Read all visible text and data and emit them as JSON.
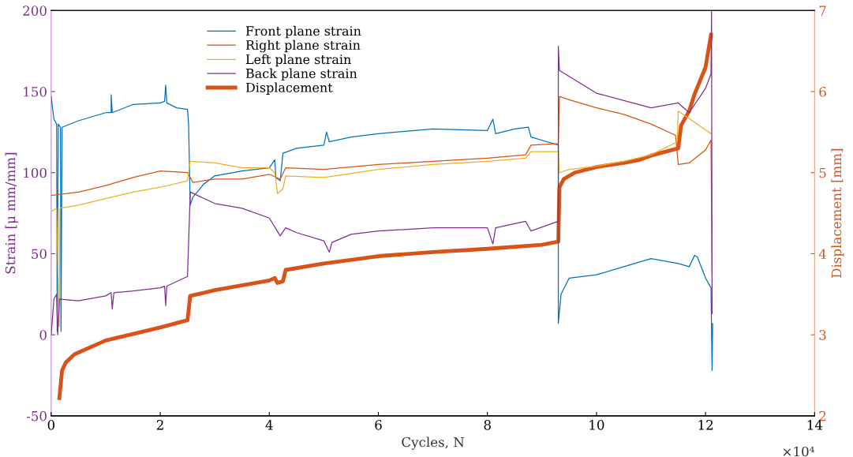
{
  "chart_data": {
    "type": "line",
    "xlabel": "Cycles, N",
    "ylabel": "Strain [μ mm/mm]",
    "y2label": "Displacement [mm]",
    "annotations": [
      "×10⁴"
    ],
    "xlim": [
      0,
      14
    ],
    "xticks": [
      0,
      2,
      4,
      6,
      8,
      10,
      12,
      14
    ],
    "ylim": [
      -50,
      200
    ],
    "yticks": [
      -50,
      0,
      50,
      100,
      150,
      200
    ],
    "y2lim": [
      2,
      7
    ],
    "y2ticks": [
      2,
      3,
      4,
      5,
      6,
      7
    ],
    "grid": false,
    "legend": "top left",
    "marker": "none",
    "line_style": "solid",
    "series": [
      {
        "name": "Front plane strain",
        "color": "#0072bd",
        "x": [
          0,
          0.05,
          0.1,
          0.11,
          0.13,
          0.17,
          0.18,
          0.2,
          0.5,
          1.0,
          1.1,
          1.1,
          1.12,
          1.5,
          2.0,
          2.08,
          2.1,
          2.12,
          2.3,
          2.5,
          2.52,
          2.55,
          2.6,
          2.8,
          3.0,
          3.5,
          4.0,
          4.1,
          4.12,
          4.2,
          4.25,
          4.5,
          5.0,
          5.05,
          5.1,
          5.5,
          6.0,
          7.0,
          8.0,
          8.1,
          8.15,
          8.5,
          8.75,
          8.8,
          9.2,
          9.3,
          9.3,
          9.35,
          9.5,
          10,
          10.5,
          11,
          11.5,
          11.7,
          11.8,
          11.85,
          12.0,
          12.1,
          12.12,
          12.13
        ],
        "values": [
          147,
          133,
          130,
          2,
          130,
          128,
          2,
          128,
          132,
          137,
          137,
          148,
          137,
          142,
          143,
          144,
          154,
          143,
          140,
          139,
          130,
          80,
          85,
          93,
          98,
          101,
          103,
          108,
          97,
          95,
          112,
          115,
          117,
          125,
          119,
          122,
          124,
          127,
          126,
          133,
          124,
          127,
          128,
          122,
          118,
          117,
          7,
          25,
          35,
          37,
          42,
          47,
          44,
          42,
          49,
          48,
          35,
          29,
          -22,
          7
        ]
      },
      {
        "name": "Right plane strain",
        "color": "#d95319",
        "x": [
          0,
          0.5,
          1,
          1.5,
          2,
          2.5,
          2.6,
          3,
          3.5,
          4,
          4.2,
          4.3,
          5,
          6,
          7,
          8,
          8.7,
          8.8,
          9.3,
          9.32,
          9.5,
          10,
          10.5,
          11,
          11.45,
          11.5,
          11.7,
          12,
          12.1,
          12.12
        ],
        "values": [
          86,
          88,
          92,
          97,
          101,
          100,
          94,
          96,
          96,
          99,
          96,
          103,
          102,
          105,
          107,
          109,
          111,
          117,
          118,
          147,
          145,
          140,
          136,
          130,
          123,
          105,
          106,
          114,
          120,
          38
        ]
      },
      {
        "name": "Left plane strain",
        "color": "#edb120",
        "x": [
          0,
          0.1,
          0.145,
          0.16,
          0.5,
          1,
          1.5,
          2,
          2.5,
          2.55,
          3,
          3.5,
          4,
          4.1,
          4.15,
          4.25,
          4.3,
          5,
          6,
          7,
          8,
          8.7,
          8.8,
          9.3,
          9.32,
          9.5,
          10,
          10.5,
          11,
          11.48,
          11.5,
          11.8,
          12.1
        ],
        "values": [
          76,
          78,
          5,
          78,
          80,
          84,
          88,
          91,
          95,
          107,
          106,
          103,
          103,
          100,
          87,
          90,
          98,
          97,
          102,
          105,
          107,
          109,
          113,
          113,
          100,
          102,
          104,
          107,
          111,
          119,
          138,
          131,
          124
        ]
      },
      {
        "name": "Back plane strain",
        "color": "#7e2f8e",
        "x": [
          0,
          0.05,
          0.1,
          0.12,
          0.15,
          0.5,
          1,
          1.1,
          1.12,
          1.15,
          1.5,
          2,
          2.08,
          2.1,
          2.12,
          2.5,
          2.55,
          3,
          3.5,
          4,
          4.2,
          4.3,
          4.5,
          5,
          5.1,
          5.15,
          5.5,
          6,
          7,
          8,
          8.1,
          8.15,
          8.7,
          8.8,
          9.3,
          9.3,
          9.32,
          10,
          11,
          11.5,
          11.7,
          12,
          12.1,
          12.11,
          12.12
        ],
        "values": [
          0,
          22,
          25,
          0,
          22,
          21,
          24,
          26,
          16,
          26,
          27,
          29,
          30,
          18,
          30,
          36,
          88,
          81,
          78,
          72,
          61,
          66,
          63,
          58,
          51,
          57,
          62,
          64,
          66,
          66,
          56,
          66,
          70,
          64,
          70,
          178,
          163,
          149,
          140,
          143,
          137,
          152,
          161,
          200,
          13
        ]
      },
      {
        "name": "Displacement",
        "color": "#d95319",
        "axis": "y2",
        "x": [
          0.15,
          0.2,
          0.27,
          0.43,
          1.0,
          2.0,
          2.5,
          2.55,
          3.0,
          4.0,
          4.1,
          4.15,
          4.25,
          4.3,
          5,
          6,
          7,
          8,
          9,
          9.3,
          9.32,
          9.4,
          9.6,
          10,
          10.5,
          10.8,
          11,
          11.5,
          11.55,
          11.7,
          11.8,
          12.0,
          12.1
        ],
        "values": [
          2.22,
          2.56,
          2.66,
          2.76,
          2.93,
          3.09,
          3.18,
          3.48,
          3.55,
          3.67,
          3.7,
          3.64,
          3.66,
          3.8,
          3.88,
          3.97,
          4.02,
          4.06,
          4.11,
          4.15,
          4.82,
          4.92,
          5.0,
          5.07,
          5.12,
          5.16,
          5.21,
          5.3,
          5.58,
          5.76,
          5.97,
          6.3,
          6.7
        ]
      }
    ]
  }
}
